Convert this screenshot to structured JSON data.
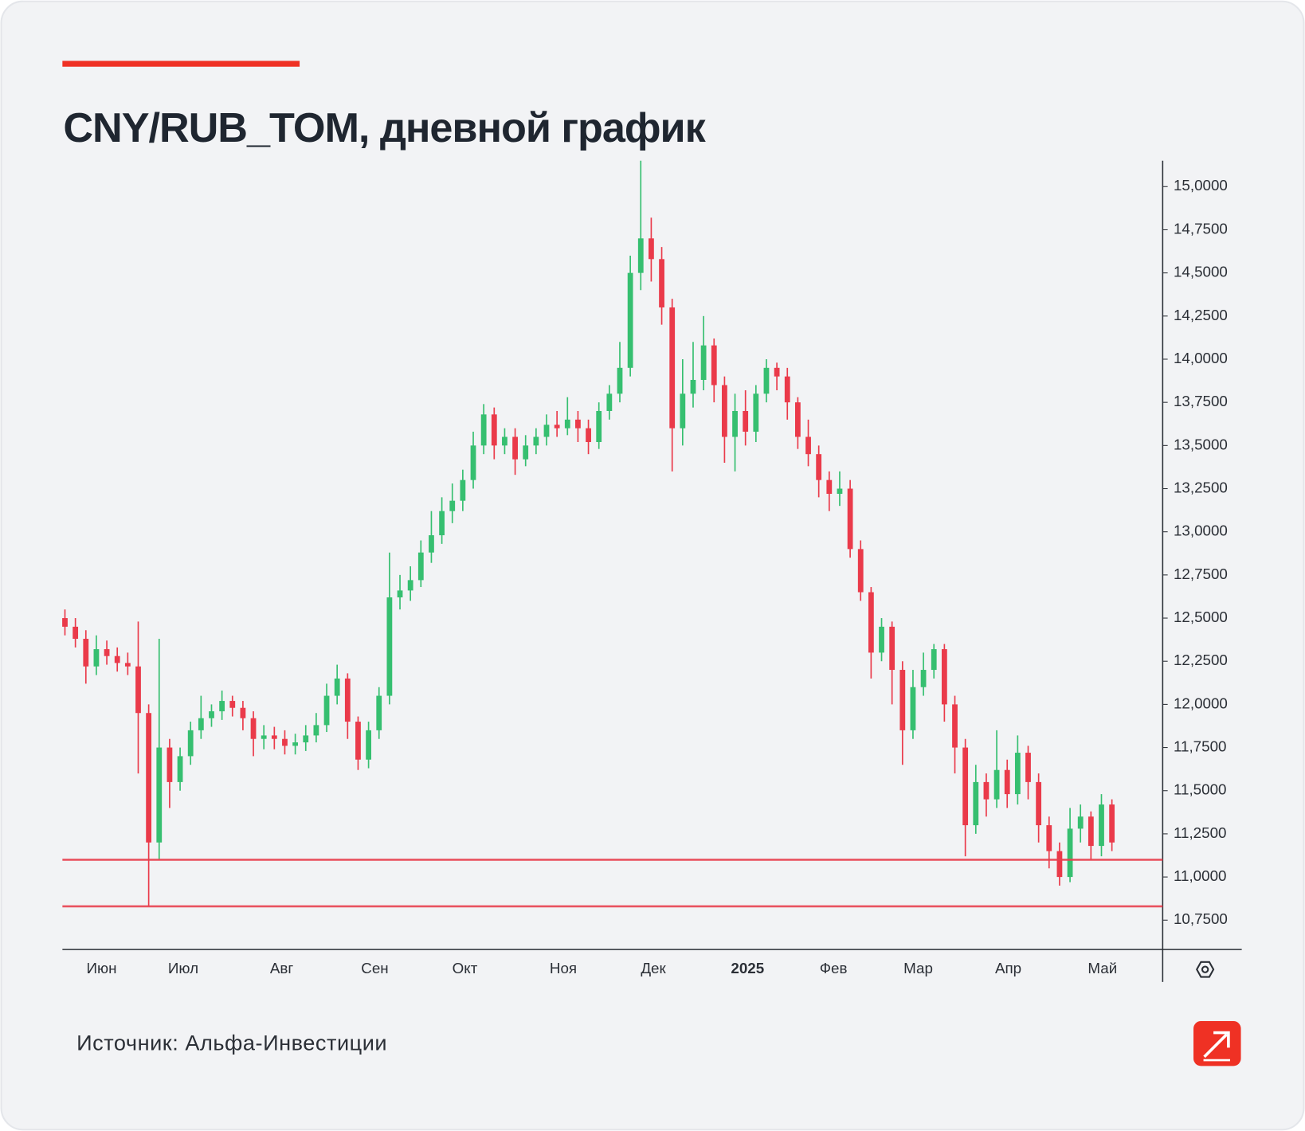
{
  "chart_data": {
    "type": "candlestick",
    "title": "CNY/RUB_TOM, дневной график",
    "source": "Источник: Альфа-Инвестиции",
    "open": [
      12.5,
      12.45,
      12.38,
      12.22,
      12.32,
      12.28,
      12.24,
      12.22,
      11.95,
      11.2,
      11.75,
      11.55,
      11.7,
      11.85,
      11.92,
      11.96,
      12.02,
      11.98,
      11.92,
      11.8,
      11.82,
      11.8,
      11.76,
      11.78,
      11.82,
      11.88,
      12.05,
      12.15,
      11.9,
      11.68,
      11.85,
      12.05,
      12.62,
      12.66,
      12.72,
      12.88,
      12.98,
      13.12,
      13.18,
      13.3,
      13.5,
      13.68,
      13.5,
      13.55,
      13.42,
      13.5,
      13.55,
      13.62,
      13.6,
      13.65,
      13.6,
      13.52,
      13.7,
      13.8,
      13.95,
      14.5,
      14.7,
      14.58,
      14.3,
      13.6,
      13.8,
      13.88,
      14.08,
      13.85,
      13.55,
      13.7,
      13.58,
      13.8,
      13.95,
      13.9,
      13.75,
      13.55,
      13.45,
      13.3,
      13.22,
      13.25,
      12.9,
      12.65,
      12.3,
      12.45,
      12.2,
      11.85,
      12.1,
      12.2,
      12.32,
      12.0,
      11.75,
      11.3,
      11.55,
      11.45,
      11.62,
      11.48,
      11.72,
      11.55,
      11.3,
      11.15,
      11.0,
      11.28,
      11.35,
      11.18,
      11.42
    ],
    "high": [
      12.55,
      12.5,
      12.43,
      12.4,
      12.37,
      12.33,
      12.3,
      12.48,
      12.0,
      12.38,
      11.8,
      11.75,
      11.9,
      12.05,
      12.0,
      12.08,
      12.05,
      12.02,
      11.96,
      11.88,
      11.87,
      11.85,
      11.83,
      11.88,
      11.95,
      12.12,
      12.23,
      12.18,
      11.93,
      11.9,
      12.1,
      12.88,
      12.75,
      12.8,
      12.95,
      13.12,
      13.2,
      13.28,
      13.36,
      13.58,
      13.74,
      13.72,
      13.6,
      13.6,
      13.56,
      13.6,
      13.68,
      13.7,
      13.78,
      13.7,
      13.65,
      13.75,
      13.85,
      14.1,
      14.6,
      15.15,
      14.82,
      14.65,
      14.35,
      14.0,
      14.1,
      14.25,
      14.12,
      13.9,
      13.8,
      13.82,
      13.85,
      14.0,
      13.98,
      13.95,
      13.78,
      13.65,
      13.5,
      13.35,
      13.35,
      13.3,
      12.95,
      12.68,
      12.5,
      12.48,
      12.25,
      12.2,
      12.3,
      12.35,
      12.35,
      12.05,
      11.8,
      11.65,
      11.6,
      11.85,
      11.68,
      11.82,
      11.76,
      11.6,
      11.35,
      11.2,
      11.4,
      11.42,
      11.38,
      11.48,
      11.45
    ],
    "low": [
      12.4,
      12.33,
      12.12,
      12.17,
      12.23,
      12.19,
      12.17,
      11.6,
      10.83,
      11.1,
      11.4,
      11.5,
      11.65,
      11.8,
      11.87,
      11.91,
      11.93,
      11.85,
      11.7,
      11.74,
      11.74,
      11.71,
      11.71,
      11.73,
      11.78,
      11.84,
      12.0,
      11.8,
      11.62,
      11.63,
      11.8,
      12.0,
      12.55,
      12.6,
      12.68,
      12.82,
      12.93,
      13.05,
      13.12,
      13.25,
      13.45,
      13.42,
      13.45,
      13.33,
      13.38,
      13.45,
      13.5,
      13.55,
      13.56,
      13.52,
      13.45,
      13.48,
      13.65,
      13.75,
      13.9,
      14.4,
      14.45,
      14.2,
      13.35,
      13.5,
      13.72,
      13.82,
      13.75,
      13.4,
      13.35,
      13.5,
      13.52,
      13.75,
      13.82,
      13.65,
      13.48,
      13.38,
      13.2,
      13.12,
      13.15,
      12.85,
      12.6,
      12.15,
      12.25,
      12.0,
      11.65,
      11.8,
      12.05,
      12.15,
      11.9,
      11.6,
      11.12,
      11.25,
      11.35,
      11.4,
      11.4,
      11.42,
      11.45,
      11.2,
      11.05,
      10.95,
      10.97,
      11.2,
      11.1,
      11.12,
      11.15
    ],
    "close": [
      12.45,
      12.38,
      12.22,
      12.32,
      12.28,
      12.24,
      12.22,
      11.95,
      11.2,
      11.75,
      11.55,
      11.7,
      11.85,
      11.92,
      11.96,
      12.02,
      11.98,
      11.92,
      11.8,
      11.82,
      11.8,
      11.76,
      11.78,
      11.82,
      11.88,
      12.05,
      12.15,
      11.9,
      11.68,
      11.85,
      12.05,
      12.62,
      12.66,
      12.72,
      12.88,
      12.98,
      13.12,
      13.18,
      13.3,
      13.5,
      13.68,
      13.5,
      13.55,
      13.42,
      13.5,
      13.55,
      13.62,
      13.6,
      13.65,
      13.6,
      13.52,
      13.7,
      13.8,
      13.95,
      14.5,
      14.7,
      14.58,
      14.3,
      13.6,
      13.8,
      13.88,
      14.08,
      13.85,
      13.55,
      13.7,
      13.58,
      13.8,
      13.95,
      13.9,
      13.75,
      13.55,
      13.45,
      13.3,
      13.22,
      13.25,
      12.9,
      12.65,
      12.3,
      12.45,
      12.2,
      11.85,
      12.1,
      12.2,
      12.32,
      12.0,
      11.75,
      11.3,
      11.55,
      11.45,
      11.62,
      11.48,
      11.72,
      11.55,
      11.3,
      11.15,
      11.0,
      11.28,
      11.35,
      11.18,
      11.42,
      11.2
    ],
    "up_color": "#36bf70",
    "down_color": "#ea3a4a",
    "xlim": [
      -0.24,
      104.85
    ],
    "xticks": [
      {
        "value": 3.5,
        "label": "Июн"
      },
      {
        "value": 11.3,
        "label": "Июл"
      },
      {
        "value": 20.7,
        "label": "Авг"
      },
      {
        "value": 29.6,
        "label": "Сен"
      },
      {
        "value": 38.2,
        "label": "Окт"
      },
      {
        "value": 47.6,
        "label": "Ноя"
      },
      {
        "value": 56.2,
        "label": "Дек"
      },
      {
        "value": 65.2,
        "label": "2025"
      },
      {
        "value": 73.4,
        "label": "Фев"
      },
      {
        "value": 81.5,
        "label": "Мар"
      },
      {
        "value": 90.1,
        "label": "Апр"
      },
      {
        "value": 99.1,
        "label": "Май"
      }
    ],
    "ylim": [
      10.58,
      15.15
    ],
    "yticks": [
      {
        "value": 10.75,
        "label": "10,7500"
      },
      {
        "value": 11,
        "label": "11,0000"
      },
      {
        "value": 11.25,
        "label": "11,2500"
      },
      {
        "value": 11.5,
        "label": "11,5000"
      },
      {
        "value": 11.75,
        "label": "11,7500"
      },
      {
        "value": 12,
        "label": "12,0000"
      },
      {
        "value": 12.25,
        "label": "12,2500"
      },
      {
        "value": 12.5,
        "label": "12,5000"
      },
      {
        "value": 12.75,
        "label": "12,7500"
      },
      {
        "value": 13,
        "label": "13,0000"
      },
      {
        "value": 13.25,
        "label": "13,2500"
      },
      {
        "value": 13.5,
        "label": "13,5000"
      },
      {
        "value": 13.75,
        "label": "13,7500"
      },
      {
        "value": 14,
        "label": "14,0000"
      },
      {
        "value": 14.25,
        "label": "14,2500"
      },
      {
        "value": 14.5,
        "label": "14,5000"
      },
      {
        "value": 14.75,
        "label": "14,7500"
      },
      {
        "value": 15,
        "label": "15,0000"
      }
    ],
    "hlines": [
      11.1,
      10.83
    ],
    "hline_color": "#e8404f"
  }
}
